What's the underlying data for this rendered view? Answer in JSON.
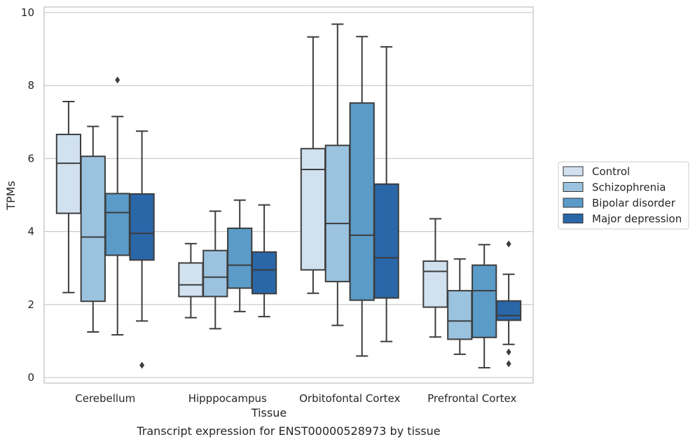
{
  "chart_data": {
    "type": "boxplot",
    "title": "Transcript expression for ENST00000528973 by tissue",
    "xlabel": "Tissue",
    "ylabel": "TPMs",
    "ylim": [
      -0.15,
      10.15
    ],
    "yticks": [
      0,
      2,
      4,
      6,
      8,
      10
    ],
    "grid": true,
    "legend_position": "right",
    "categories": [
      "Cerebellum",
      "Hipppocampus",
      "Orbitofontal Cortex",
      "Prefrontal Cortex"
    ],
    "series": [
      {
        "name": "Control",
        "color": "#d1e1f0",
        "boxes": [
          {
            "whislo": 2.33,
            "q1": 4.5,
            "med": 5.87,
            "q3": 6.66,
            "whishi": 7.56,
            "fliers": []
          },
          {
            "whislo": 1.64,
            "q1": 2.22,
            "med": 2.54,
            "q3": 3.14,
            "whishi": 3.67,
            "fliers": []
          },
          {
            "whislo": 2.31,
            "q1": 2.95,
            "med": 5.7,
            "q3": 6.27,
            "whishi": 9.33,
            "fliers": []
          },
          {
            "whislo": 1.11,
            "q1": 1.93,
            "med": 2.91,
            "q3": 3.19,
            "whishi": 4.35,
            "fliers": []
          }
        ]
      },
      {
        "name": "Schizophrenia",
        "color": "#9bc3df",
        "boxes": [
          {
            "whislo": 1.25,
            "q1": 2.09,
            "med": 3.85,
            "q3": 6.06,
            "whishi": 6.88,
            "fliers": []
          },
          {
            "whislo": 1.34,
            "q1": 2.22,
            "med": 2.75,
            "q3": 3.48,
            "whishi": 4.56,
            "fliers": []
          },
          {
            "whislo": 1.43,
            "q1": 2.63,
            "med": 4.22,
            "q3": 6.36,
            "whishi": 9.68,
            "fliers": []
          },
          {
            "whislo": 0.64,
            "q1": 1.05,
            "med": 1.55,
            "q3": 2.38,
            "whishi": 3.25,
            "fliers": []
          }
        ]
      },
      {
        "name": "Bipolar disorder",
        "color": "#5a9bc8",
        "boxes": [
          {
            "whislo": 1.17,
            "q1": 3.35,
            "med": 4.52,
            "q3": 5.04,
            "whishi": 7.15,
            "fliers": [
              8.15
            ]
          },
          {
            "whislo": 1.81,
            "q1": 2.45,
            "med": 3.08,
            "q3": 4.09,
            "whishi": 4.86,
            "fliers": []
          },
          {
            "whislo": 0.59,
            "q1": 2.12,
            "med": 3.9,
            "q3": 7.52,
            "whishi": 9.34,
            "fliers": []
          },
          {
            "whislo": 0.27,
            "q1": 1.1,
            "med": 2.38,
            "q3": 3.08,
            "whishi": 3.64,
            "fliers": []
          }
        ]
      },
      {
        "name": "Major depression",
        "color": "#2a67a8",
        "boxes": [
          {
            "whislo": 1.55,
            "q1": 3.22,
            "med": 3.95,
            "q3": 5.03,
            "whishi": 6.75,
            "fliers": [
              0.34
            ]
          },
          {
            "whislo": 1.67,
            "q1": 2.3,
            "med": 2.95,
            "q3": 3.44,
            "whishi": 4.73,
            "fliers": []
          },
          {
            "whislo": 0.99,
            "q1": 2.18,
            "med": 3.28,
            "q3": 5.3,
            "whishi": 9.06,
            "fliers": []
          },
          {
            "whislo": 0.91,
            "q1": 1.57,
            "med": 1.7,
            "q3": 2.1,
            "whishi": 2.83,
            "fliers": [
              3.66,
              0.7,
              0.38
            ]
          }
        ]
      }
    ]
  }
}
